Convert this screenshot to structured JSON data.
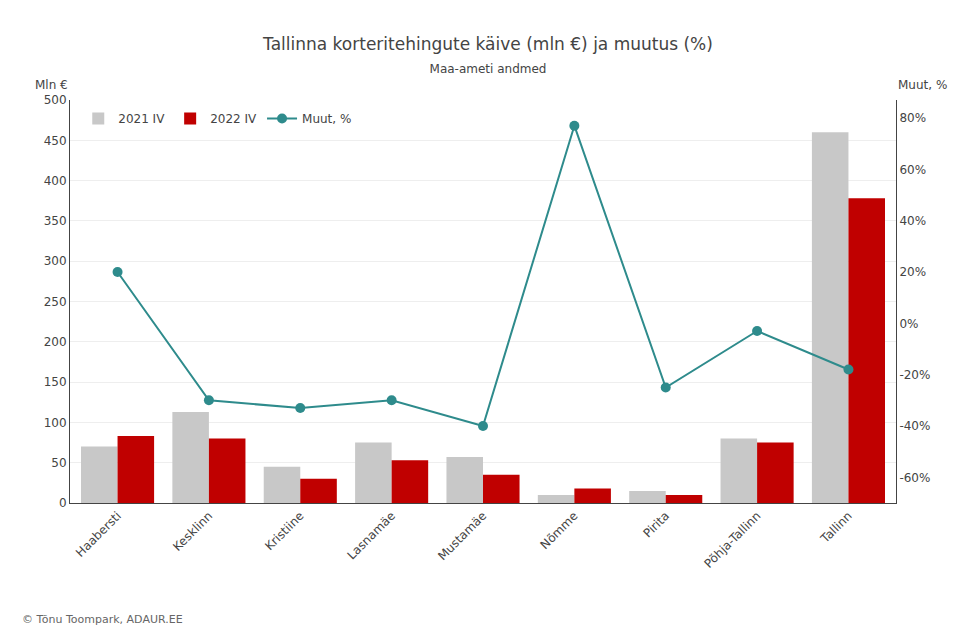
{
  "chart_data": {
    "type": "bar",
    "title": "Tallinna korteritehingute käive (mln €) ja muutus (%)",
    "subtitle": "Maa-ameti andmed",
    "ylabel": "Mln €",
    "y2label": "Muut, %",
    "categories": [
      "Haabersti",
      "Kesklinn",
      "Kristiine",
      "Lasnamäe",
      "Mustamäe",
      "Nõmme",
      "Pirita",
      "Põhja-Tallinn",
      "Tallinn"
    ],
    "series": [
      {
        "name": "2021 IV",
        "type": "bar",
        "color": "#c8c8c8",
        "values": [
          70,
          113,
          45,
          75,
          57,
          10,
          15,
          80,
          460
        ]
      },
      {
        "name": "2022 IV",
        "type": "bar",
        "color": "#c00000",
        "values": [
          83,
          80,
          30,
          53,
          35,
          18,
          10,
          75,
          378
        ]
      },
      {
        "name": "Muut, %",
        "type": "line",
        "axis": "y2",
        "color": "#2e8b8c",
        "marker": "circle",
        "values": [
          20,
          -30,
          -33,
          -30,
          -40,
          77,
          -25,
          -3,
          -18
        ]
      }
    ],
    "ylim": [
      0,
      500
    ],
    "yticks": [
      0,
      50,
      100,
      150,
      200,
      250,
      300,
      350,
      400,
      450,
      500
    ],
    "y2lim": [
      -70,
      87
    ],
    "y2ticks": [
      {
        "value": -60,
        "label": "-60%"
      },
      {
        "value": -40,
        "label": "-40%"
      },
      {
        "value": -20,
        "label": "-20%"
      },
      {
        "value": 0,
        "label": "0%"
      },
      {
        "value": 20,
        "label": "20%"
      },
      {
        "value": 40,
        "label": "40%"
      },
      {
        "value": 60,
        "label": "60%"
      },
      {
        "value": 80,
        "label": "80%"
      }
    ],
    "grid": true,
    "legend": "upper left",
    "annotations": [
      "© Tõnu Toompark, ADAUR.EE"
    ]
  }
}
